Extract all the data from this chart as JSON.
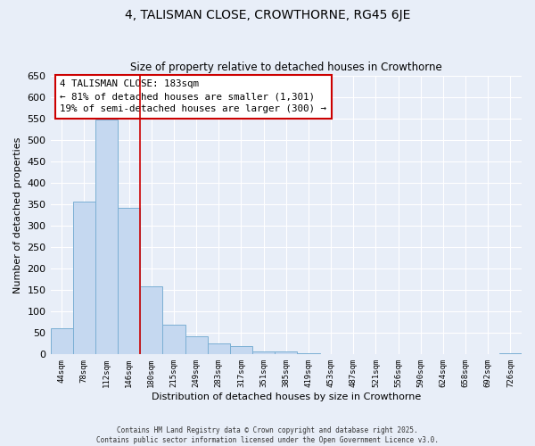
{
  "title": "4, TALISMAN CLOSE, CROWTHORNE, RG45 6JE",
  "subtitle": "Size of property relative to detached houses in Crowthorne",
  "xlabel": "Distribution of detached houses by size in Crowthorne",
  "ylabel": "Number of detached properties",
  "bar_color": "#c5d8f0",
  "bar_edge_color": "#7bafd4",
  "background_color": "#e8eef8",
  "grid_color": "#ffffff",
  "categories": [
    "44sqm",
    "78sqm",
    "112sqm",
    "146sqm",
    "180sqm",
    "215sqm",
    "249sqm",
    "283sqm",
    "317sqm",
    "351sqm",
    "385sqm",
    "419sqm",
    "453sqm",
    "487sqm",
    "521sqm",
    "556sqm",
    "590sqm",
    "624sqm",
    "658sqm",
    "692sqm",
    "726sqm"
  ],
  "values": [
    60,
    357,
    547,
    341,
    158,
    70,
    42,
    25,
    20,
    7,
    7,
    2,
    0,
    0,
    0,
    0,
    0,
    0,
    0,
    0,
    2
  ],
  "ylim": [
    0,
    650
  ],
  "yticks": [
    0,
    50,
    100,
    150,
    200,
    250,
    300,
    350,
    400,
    450,
    500,
    550,
    600,
    650
  ],
  "property_vline_x": 3.5,
  "annotation_line1": "4 TALISMAN CLOSE: 183sqm",
  "annotation_line2": "← 81% of detached houses are smaller (1,301)",
  "annotation_line3": "19% of semi-detached houses are larger (300) →",
  "annotation_box_color": "#ffffff",
  "annotation_border_color": "#cc0000",
  "property_vline_color": "#cc0000",
  "footer_line1": "Contains HM Land Registry data © Crown copyright and database right 2025.",
  "footer_line2": "Contains public sector information licensed under the Open Government Licence v3.0."
}
